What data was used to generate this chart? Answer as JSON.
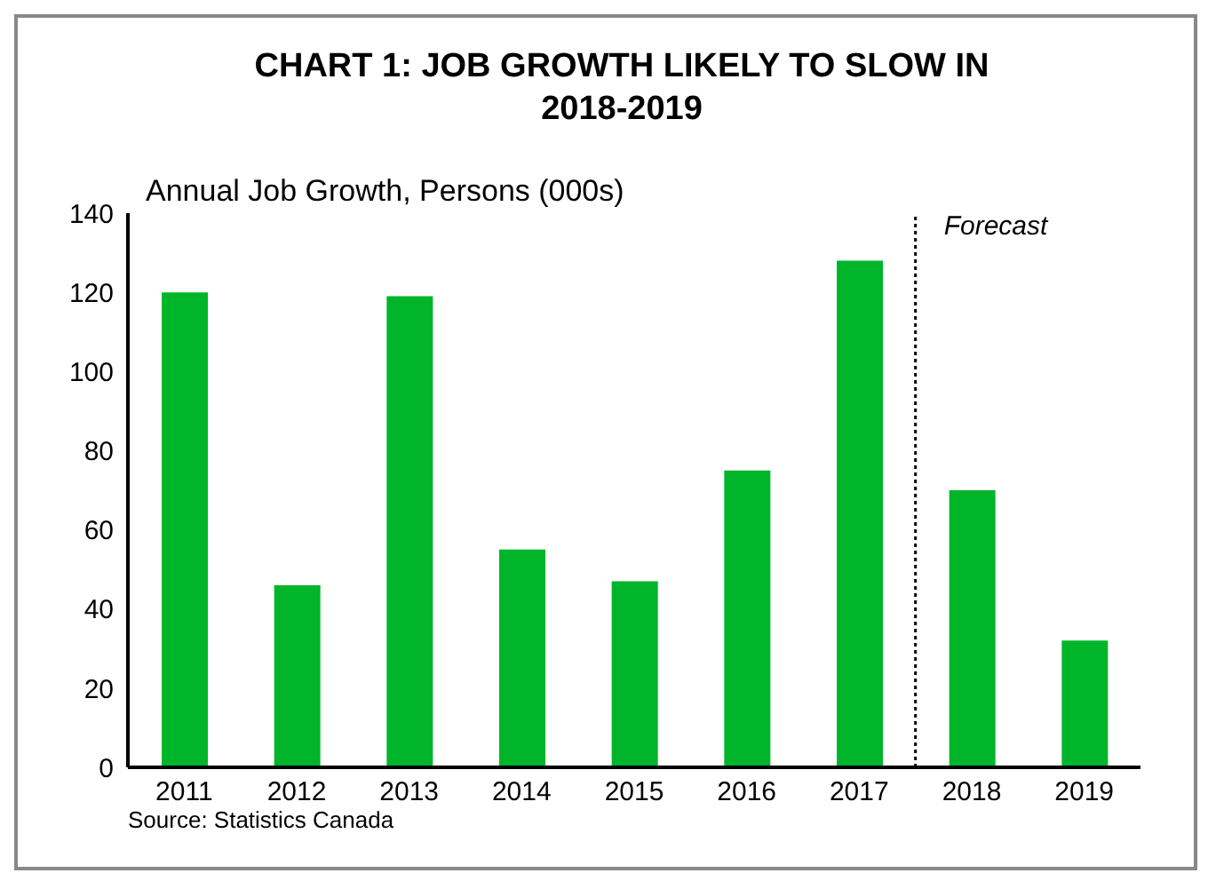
{
  "chart_data": {
    "type": "bar",
    "title": "CHART 1: JOB GROWTH LIKELY TO SLOW IN 2018-2019",
    "ylabel": "Annual Job Growth, Persons (000s)",
    "x": [
      2011,
      2012,
      2013,
      2014,
      2015,
      2016,
      2017,
      2018,
      2019
    ],
    "xlim": [
      2010.5,
      2019.5
    ],
    "xticks": [
      2011,
      2012,
      2013,
      2014,
      2015,
      2016,
      2017,
      2018,
      2019
    ],
    "values": [
      120,
      46,
      119,
      55,
      47,
      75,
      128,
      70,
      32
    ],
    "color": "#00b52a",
    "ylim": [
      0,
      140
    ],
    "yticks": [
      0,
      20,
      40,
      60,
      80,
      100,
      120,
      140
    ],
    "grid": false,
    "legend": false,
    "ref_lines": [
      {
        "axis": "x",
        "value": 2017.5,
        "label": "Forecast",
        "line_style": "dotted",
        "color": "#000000"
      }
    ],
    "annotations": [
      "Source: Statistics Canada"
    ]
  }
}
